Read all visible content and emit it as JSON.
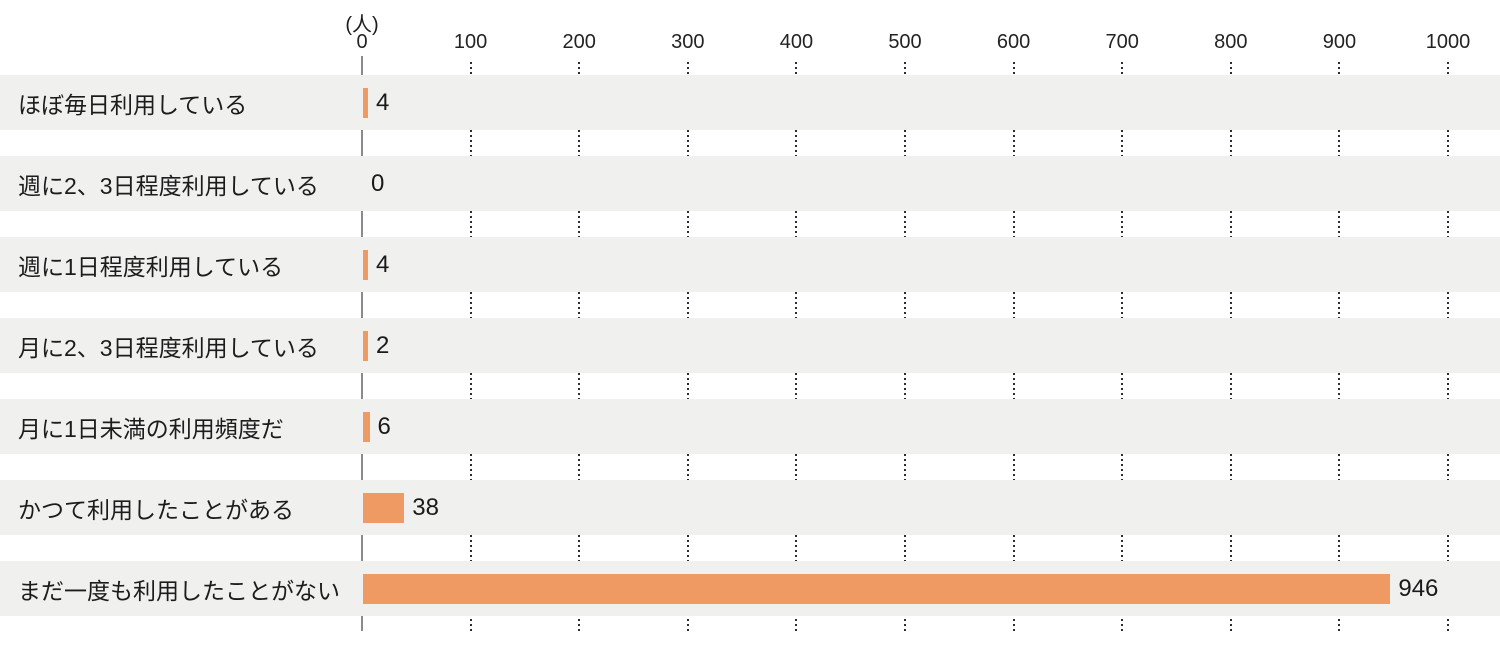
{
  "chart_data": {
    "type": "bar",
    "orientation": "horizontal",
    "title": "",
    "unit_label": "(人)",
    "categories": [
      "ほぼ毎日利用している",
      "週に2、3日程度利用している",
      "週に1日程度利用している",
      "月に2、3日程度利用している",
      "月に1日未満の利用頻度だ",
      "かつて利用したことがある",
      "まだ一度も利用したことがない"
    ],
    "values": [
      4,
      0,
      4,
      2,
      6,
      38,
      946
    ],
    "value_labels": [
      "4",
      "0",
      "4",
      "2",
      "6",
      "38",
      "946"
    ],
    "x_ticks": [
      "0",
      "100",
      "200",
      "300",
      "400",
      "500",
      "600",
      "700",
      "800",
      "900",
      "1000"
    ],
    "xlim": [
      0,
      1000
    ],
    "legend": "none",
    "grid": "dotted vertical tick guides between row stripes",
    "colors": {
      "bar": "#ef9a62",
      "row_stripe": "#f0f0ef",
      "axis_line": "#8a8a8a",
      "tick_dots": "#2e2e2e",
      "text": "#1a1a1a"
    }
  }
}
